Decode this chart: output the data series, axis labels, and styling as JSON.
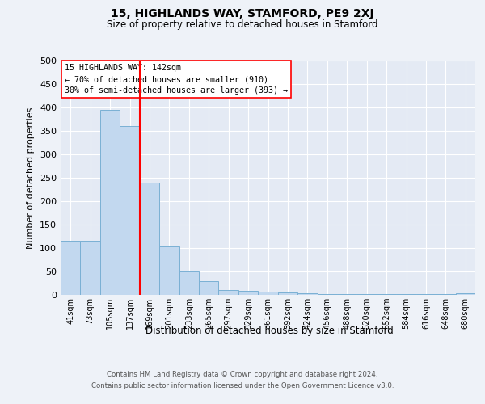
{
  "title": "15, HIGHLANDS WAY, STAMFORD, PE9 2XJ",
  "subtitle": "Size of property relative to detached houses in Stamford",
  "xlabel": "Distribution of detached houses by size in Stamford",
  "ylabel": "Number of detached properties",
  "footer_line1": "Contains HM Land Registry data © Crown copyright and database right 2024.",
  "footer_line2": "Contains public sector information licensed under the Open Government Licence v3.0.",
  "bar_labels": [
    "41sqm",
    "73sqm",
    "105sqm",
    "137sqm",
    "169sqm",
    "201sqm",
    "233sqm",
    "265sqm",
    "297sqm",
    "329sqm",
    "361sqm",
    "392sqm",
    "424sqm",
    "456sqm",
    "488sqm",
    "520sqm",
    "552sqm",
    "584sqm",
    "616sqm",
    "648sqm",
    "680sqm"
  ],
  "bar_values": [
    115,
    115,
    395,
    360,
    240,
    103,
    50,
    30,
    10,
    8,
    7,
    5,
    3,
    2,
    2,
    1,
    2,
    1,
    1,
    1,
    4
  ],
  "bar_color": "#c2d8ef",
  "bar_edgecolor": "#7ab0d4",
  "red_line_x": 3.5,
  "annotation_line1": "15 HIGHLANDS WAY: 142sqm",
  "annotation_line2": "← 70% of detached houses are smaller (910)",
  "annotation_line3": "30% of semi-detached houses are larger (393) →",
  "ylim": [
    0,
    500
  ],
  "yticks": [
    0,
    50,
    100,
    150,
    200,
    250,
    300,
    350,
    400,
    450,
    500
  ],
  "background_color": "#eef2f8",
  "plot_background": "#e4eaf4",
  "grid_color": "#ffffff",
  "title_fontsize": 10,
  "subtitle_fontsize": 8.5
}
